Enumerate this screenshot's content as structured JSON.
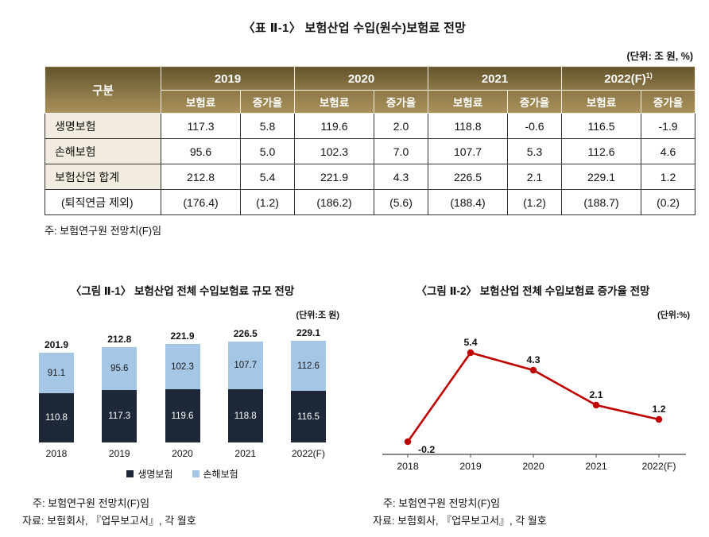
{
  "table": {
    "title": "〈표 Ⅱ-1〉 보험산업 수입(원수)보험료 전망",
    "unit": "(단위: 조 원, %)",
    "col_group_header": "구분",
    "year_headers": [
      {
        "label": "2019",
        "sup": ""
      },
      {
        "label": "2020",
        "sup": ""
      },
      {
        "label": "2021",
        "sup": ""
      },
      {
        "label": "2022(F)",
        "sup": "1)"
      }
    ],
    "sub_headers": [
      "보험료",
      "증가율"
    ],
    "rows": [
      {
        "label": "생명보험",
        "values": [
          "117.3",
          "5.8",
          "119.6",
          "2.0",
          "118.8",
          "-0.6",
          "116.5",
          "-1.9"
        ]
      },
      {
        "label": "손해보험",
        "values": [
          "95.6",
          "5.0",
          "102.3",
          "7.0",
          "107.7",
          "5.3",
          "112.6",
          "4.6"
        ]
      },
      {
        "label": "보험산업 합계",
        "values": [
          "212.8",
          "5.4",
          "221.9",
          "4.3",
          "226.5",
          "2.1",
          "229.1",
          "1.2"
        ]
      },
      {
        "label": "(퇴직연금 제외)",
        "values": [
          "(176.4)",
          "(1.2)",
          "(186.2)",
          "(5.6)",
          "(188.4)",
          "(1.2)",
          "(188.7)",
          "(0.2)"
        ]
      }
    ],
    "note": "주: 보험연구원 전망치(F)임"
  },
  "colors": {
    "header_top": "#64552e",
    "header_mid": "#8d7847",
    "header_bottom": "#aa925b",
    "row_label_bg": "#f1ecdf",
    "life_bar": "#1e2838",
    "nonlife_bar": "#a6c6e5",
    "growth_line": "#c00000"
  },
  "chart_data": [
    {
      "type": "bar",
      "stacked": true,
      "title": "〈그림 Ⅱ-1〉 보험산업 전체 수입보험료 규모 전망",
      "unit": "(단위:조 원)",
      "categories": [
        "2018",
        "2019",
        "2020",
        "2021",
        "2022(F)"
      ],
      "series": [
        {
          "name": "생명보험",
          "values": [
            110.8,
            117.3,
            119.6,
            118.8,
            116.5
          ],
          "color": "#1e2838"
        },
        {
          "name": "손해보험",
          "values": [
            91.1,
            95.6,
            102.3,
            107.7,
            112.6
          ],
          "color": "#a6c6e5"
        }
      ],
      "totals": [
        201.9,
        212.8,
        221.9,
        226.5,
        229.1
      ],
      "legend_position": "bottom",
      "notes": [
        "주: 보험연구원 전망치(F)임",
        "자료: 보험회사, 『업무보고서』, 각 월호"
      ]
    },
    {
      "type": "line",
      "title": "〈그림 Ⅱ-2〉 보험산업 전체 수입보험료 증가율 전망",
      "unit": "(단위:%)",
      "categories": [
        "2018",
        "2019",
        "2020",
        "2021",
        "2022(F)"
      ],
      "values": [
        -0.2,
        5.4,
        4.3,
        2.1,
        1.2
      ],
      "color": "#c00000",
      "ylim": [
        -1,
        6
      ],
      "grid": false,
      "notes": [
        "주: 보험연구원 전망치(F)임",
        "자료: 보험회사, 『업무보고서』, 각 월호"
      ]
    }
  ]
}
